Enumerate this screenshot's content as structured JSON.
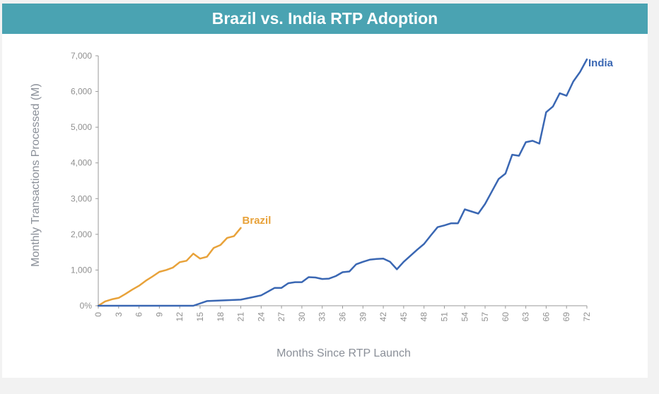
{
  "chart_data": {
    "type": "line",
    "title": "Brazil vs. India RTP Adoption",
    "xlabel": "Months Since RTP Launch",
    "ylabel": "Monthly Transactions Processed (M)",
    "xlim": [
      0,
      72
    ],
    "ylim": [
      0,
      7000
    ],
    "x_ticks": [
      "0",
      "3",
      "6",
      "9",
      "12",
      "15",
      "18",
      "21",
      "24",
      "27",
      "30",
      "33",
      "36",
      "39",
      "42",
      "45",
      "48",
      "51",
      "54",
      "57",
      "60",
      "63",
      "66",
      "69",
      "72"
    ],
    "y_ticks": [
      "0%",
      "1,000",
      "2,000",
      "3,000",
      "4,000",
      "5,000",
      "6,000",
      "7,000"
    ],
    "grid": false,
    "series": [
      {
        "name": "Brazil",
        "color": "#e8a23a",
        "x": [
          0,
          1,
          2,
          3,
          4,
          5,
          6,
          7,
          8,
          9,
          10,
          11,
          12,
          13,
          14,
          15,
          16,
          17,
          18,
          19,
          20,
          21
        ],
        "y": [
          0,
          120,
          180,
          220,
          330,
          450,
          560,
          700,
          820,
          950,
          1000,
          1070,
          1220,
          1260,
          1460,
          1320,
          1370,
          1620,
          1700,
          1900,
          1950,
          2180
        ]
      },
      {
        "name": "India",
        "color": "#3a67b3",
        "x": [
          0,
          14,
          16,
          21,
          23,
          24,
          26,
          27,
          28,
          29,
          30,
          31,
          32,
          33,
          34,
          35,
          36,
          37,
          38,
          39,
          40,
          41,
          42,
          43,
          44,
          45,
          46,
          47,
          48,
          49,
          50,
          51,
          52,
          53,
          54,
          55,
          56,
          57,
          58,
          59,
          60,
          61,
          62,
          63,
          64,
          65,
          66,
          67,
          68,
          69,
          70,
          71,
          72
        ],
        "y": [
          0,
          0,
          130,
          170,
          250,
          290,
          500,
          500,
          630,
          660,
          660,
          800,
          790,
          750,
          760,
          830,
          940,
          960,
          1160,
          1230,
          1290,
          1310,
          1320,
          1230,
          1020,
          1230,
          1400,
          1570,
          1730,
          1970,
          2200,
          2250,
          2310,
          2310,
          2700,
          2640,
          2580,
          2850,
          3200,
          3550,
          3700,
          4230,
          4200,
          4580,
          4620,
          4540,
          5420,
          5580,
          5950,
          5880,
          6280,
          6550,
          6900
        ]
      }
    ],
    "legend": "inline labels at line ends"
  }
}
